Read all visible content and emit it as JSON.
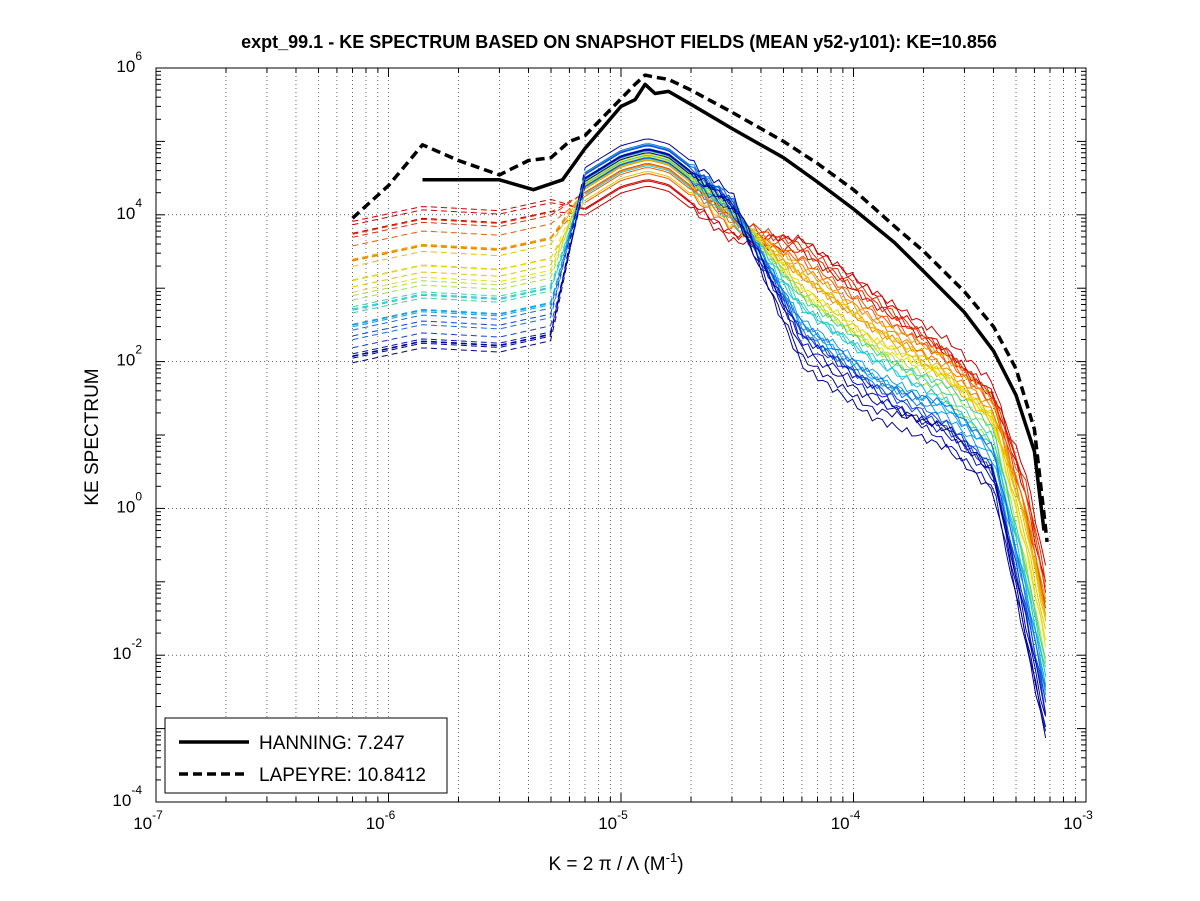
{
  "chart_data": {
    "type": "line",
    "title": "expt_99.1 - KE SPECTRUM BASED ON SNAPSHOT FIELDS (MEAN y52-y101): KE=10.856",
    "xlabel": {
      "base": "K = 2 π / Λ  (M",
      "exp": "-1",
      "close": ")"
    },
    "ylabel": "KE SPECTRUM",
    "x_scale": "log",
    "y_scale": "log",
    "xlim": [
      1e-07,
      0.001
    ],
    "ylim": [
      0.0001,
      1000000.0
    ],
    "grid": {
      "x_major": true,
      "x_minor": true,
      "y_major": true,
      "y_minor": false
    },
    "x_ticks": [
      {
        "base": "10",
        "exp": "-7",
        "value": 1e-07
      },
      {
        "base": "10",
        "exp": "-6",
        "value": 1e-06
      },
      {
        "base": "10",
        "exp": "-5",
        "value": 1e-05
      },
      {
        "base": "10",
        "exp": "-4",
        "value": 0.0001
      },
      {
        "base": "10",
        "exp": "-3",
        "value": 0.001
      }
    ],
    "y_ticks": [
      {
        "base": "10",
        "exp": "-4",
        "value": 0.0001
      },
      {
        "base": "10",
        "exp": "-2",
        "value": 0.01
      },
      {
        "base": "10",
        "exp": "0",
        "value": 1
      },
      {
        "base": "10",
        "exp": "2",
        "value": 100.0
      },
      {
        "base": "10",
        "exp": "4",
        "value": 10000.0
      },
      {
        "base": "10",
        "exp": "6",
        "value": 1000000.0
      }
    ],
    "legend": {
      "position": "bottom-left",
      "entries": [
        {
          "label": "HANNING: 7.247",
          "style": "solid"
        },
        {
          "label": "LAPEYRE: 10.8412",
          "style": "dashed"
        }
      ]
    },
    "series": [
      {
        "name": "HANNING: 7.247",
        "color": "#000000",
        "style": "solid",
        "width": 3.5,
        "x": [
          1.4e-06,
          3e-06,
          4.2e-06,
          5.6e-06,
          7e-06,
          1e-05,
          1.15e-05,
          1.27e-05,
          1.4e-05,
          1.6e-05,
          2e-05,
          3e-05,
          5e-05,
          7e-05,
          0.0001,
          0.00015,
          0.0002,
          0.0003,
          0.0004,
          0.0005,
          0.0006,
          0.00066
        ],
        "y": [
          30000,
          30000,
          22000,
          30000,
          80000,
          300000,
          370000,
          600000,
          450000,
          480000,
          320000,
          150000,
          60000,
          28000,
          12000,
          4200,
          1700,
          470,
          140,
          35,
          6,
          0.5
        ]
      },
      {
        "name": "LAPEYRE: 10.8412",
        "color": "#000000",
        "style": "dashed",
        "width": 3.5,
        "x": [
          7e-07,
          1e-06,
          1.4e-06,
          2e-06,
          3e-06,
          4e-06,
          5e-06,
          6e-06,
          7e-06,
          1e-05,
          1.15e-05,
          1.27e-05,
          1.4e-05,
          1.6e-05,
          2e-05,
          3e-05,
          5e-05,
          7e-05,
          0.0001,
          0.00015,
          0.0002,
          0.0003,
          0.0004,
          0.0005,
          0.0006,
          0.00068
        ],
        "y": [
          9000,
          25000,
          90000,
          55000,
          35000,
          55000,
          60000,
          100000,
          120000,
          380000,
          600000,
          800000,
          750000,
          700000,
          500000,
          250000,
          100000,
          50000,
          22000,
          7000,
          3200,
          900,
          300,
          80,
          12,
          0.35
        ]
      }
    ],
    "colored_series": {
      "description": "spectral lines colored red-orange-yellow-green-cyan-blue; dashed at low wavenumber, solid beyond",
      "colors": [
        "#cc0000",
        "#e03000",
        "#ee5a00",
        "#f08000",
        "#f0a000",
        "#e8c000",
        "#e8e000",
        "#a8e040",
        "#40d0a0",
        "#20c8d8",
        "#10a0e8",
        "#1070e0",
        "#1040d0",
        "#0010c0",
        "#000090"
      ]
    }
  }
}
